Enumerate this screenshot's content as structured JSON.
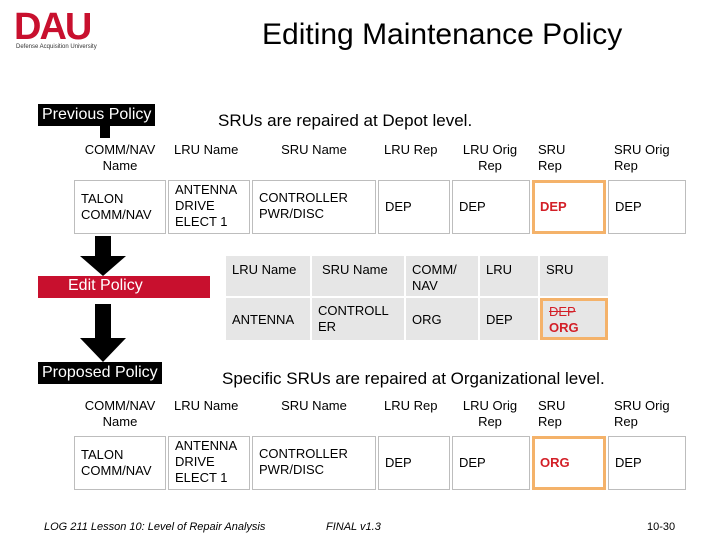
{
  "logo": {
    "letters": "DAU",
    "subtitle": "Defense Acquisition University"
  },
  "title": "Editing Maintenance Policy",
  "previous_label": "Previous Policy",
  "previous_caption": "SRUs are repaired at Depot level.",
  "edit_label": "Edit Policy",
  "proposed_label": "Proposed Policy",
  "proposed_caption": "Specific SRUs are repaired at Organizational level.",
  "table_headers": [
    "COMM/NAV Name",
    "LRU Name",
    "SRU Name",
    "LRU Rep",
    "LRU Orig Rep",
    "SRU Rep",
    "SRU Orig Rep"
  ],
  "previous_row": [
    "TALON COMM/NAV",
    "ANTENNA DRIVE ELECT 1",
    "CONTROLLER PWR/DISC",
    "DEP",
    "DEP",
    "DEP",
    "DEP"
  ],
  "proposed_row": [
    "TALON COMM/NAV",
    "ANTENNA DRIVE ELECT 1",
    "CONTROLLER PWR/DISC",
    "DEP",
    "DEP",
    "ORG",
    "DEP"
  ],
  "edit_headers": [
    "LRU Name",
    "SRU Name",
    "COMM/ NAV",
    "LRU",
    "SRU"
  ],
  "edit_row": [
    "ANTENNA",
    "CONTROLL ER",
    "ORG",
    "DEP",
    "DEP",
    "ORG"
  ],
  "footer": {
    "course": "LOG 211 Lesson 10: Level of Repair Analysis",
    "version": "FINAL v1.3",
    "page": "10-30"
  },
  "colors": {
    "brand_red": "#c8102e",
    "highlight_border": "#f4b26a",
    "edited_text": "#d31f27"
  }
}
